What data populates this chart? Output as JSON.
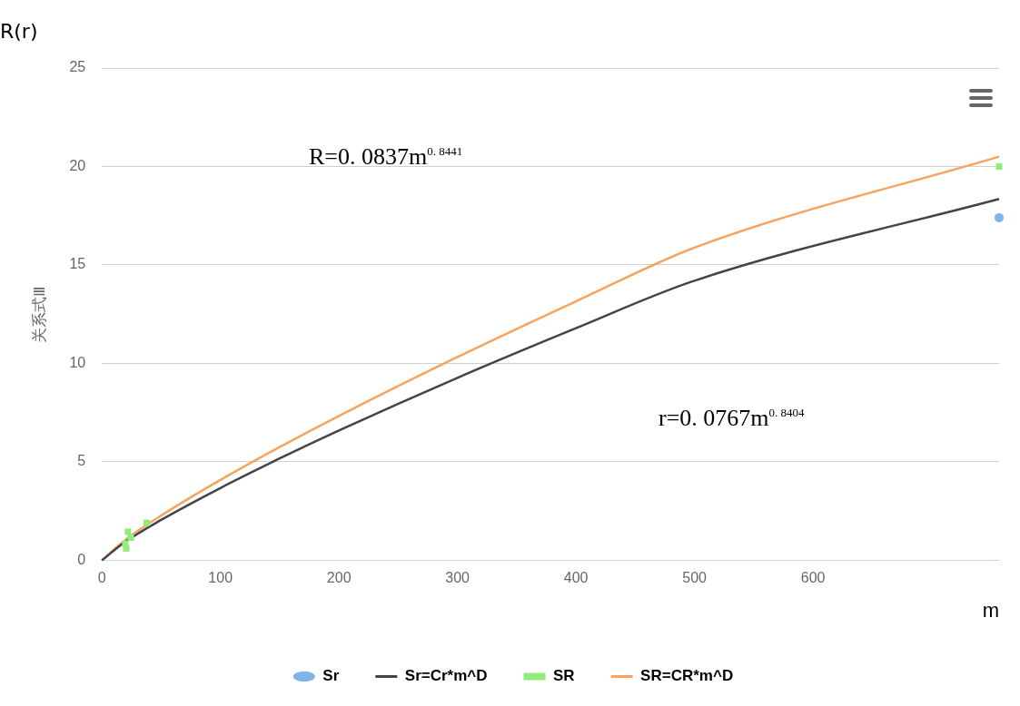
{
  "chart_data": {
    "type": "scatter",
    "ylabel": "关系式Ⅲ",
    "xlabel": "m",
    "annotations": [
      "R(r)",
      "R=0. 0837m$^{0. 8441}$",
      "r=0. 0767m$^{0. 8404}$"
    ],
    "xlim": [
      0,
      757
    ],
    "xticks": [
      0,
      100,
      200,
      300,
      400,
      500,
      600
    ],
    "ylim": [
      0,
      25
    ],
    "yticks": [
      0,
      5,
      10,
      15,
      20,
      25
    ],
    "grid": "y",
    "legend": "bottom",
    "series": [
      {
        "name": "Sr",
        "type": "scatter",
        "marker": "circle",
        "color": "#7cb5ec",
        "x": [
          757
        ],
        "values": [
          17.4
        ]
      },
      {
        "name": "Sr=Cr*m^D",
        "type": "line",
        "marker": "none",
        "color": "#434348",
        "x": [
          0,
          20,
          50,
          100,
          150,
          200,
          300,
          400,
          500,
          757
        ],
        "values": [
          0,
          0.95,
          2.05,
          3.67,
          5.17,
          6.59,
          9.27,
          11.79,
          14.2,
          18.35
        ]
      },
      {
        "name": "SR",
        "type": "scatter",
        "marker": "square",
        "color": "#90ed7d",
        "x": [
          19.7,
          20.5,
          22,
          24.4,
          37.8,
          757
        ],
        "values": [
          0.85,
          0.6,
          1.45,
          1.15,
          1.9,
          20
        ]
      },
      {
        "name": "SR=CR*m^D",
        "type": "line",
        "marker": "none",
        "color": "#f7a35c",
        "x": [
          0,
          20,
          50,
          100,
          150,
          200,
          300,
          400,
          500,
          757
        ],
        "values": [
          0,
          1.05,
          2.27,
          4.08,
          5.75,
          7.33,
          10.32,
          13.15,
          15.88,
          20.5
        ]
      }
    ]
  }
}
